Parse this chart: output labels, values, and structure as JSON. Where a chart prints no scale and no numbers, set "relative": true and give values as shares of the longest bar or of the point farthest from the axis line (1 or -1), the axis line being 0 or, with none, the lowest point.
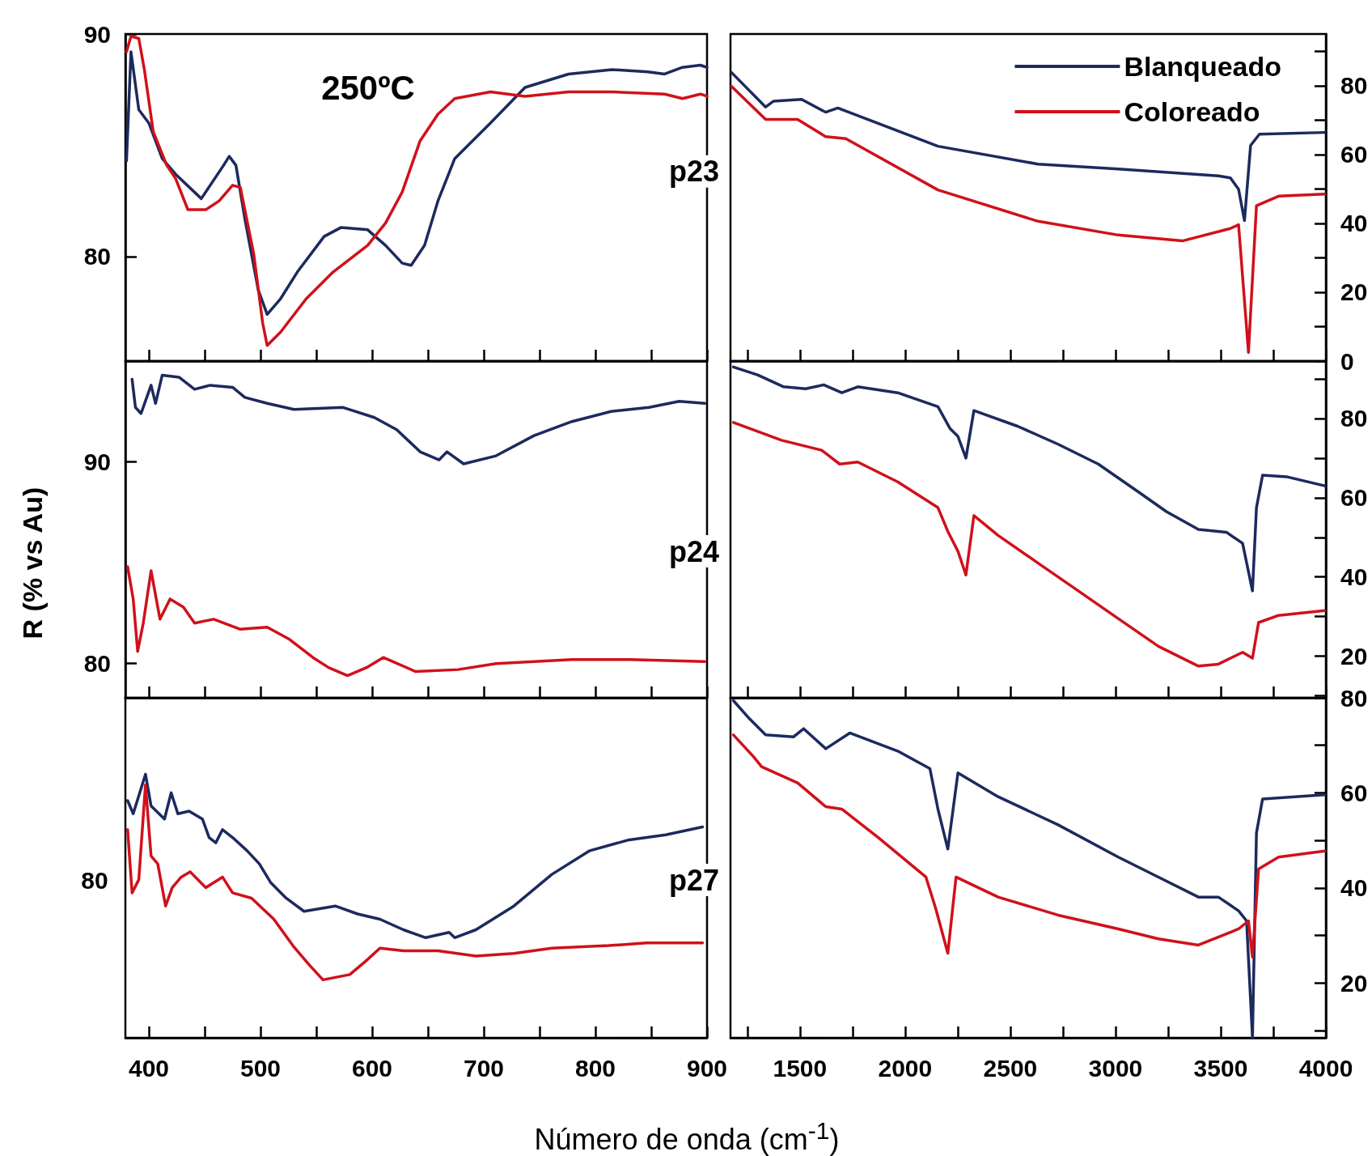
{
  "chart_data": [
    {
      "type": "line",
      "title": "250ºC",
      "annotations": [
        "p23"
      ],
      "xlim": [
        379,
        900
      ],
      "xticks": [
        400,
        {
          "value": 450,
          "label": null
        },
        500,
        {
          "value": 550,
          "label": null
        },
        600,
        {
          "value": 650,
          "label": null
        },
        700,
        {
          "value": 750,
          "label": null
        },
        800,
        {
          "value": 850,
          "label": null
        },
        900
      ],
      "ylim": [
        75.3,
        90
      ],
      "yticks": [
        80,
        90
      ],
      "tick_labels": "y",
      "series": [
        {
          "color": "#1c2a5e",
          "x": [
            380,
            384,
            391,
            400,
            412,
            424,
            447,
            467,
            472,
            478,
            486,
            498,
            506,
            518,
            533,
            557,
            572,
            596,
            612,
            627,
            635,
            647,
            659,
            674,
            706,
            737,
            776,
            815,
            847,
            862,
            878,
            894,
            900
          ],
          "values": [
            84.3,
            89.2,
            86.6,
            86.0,
            84.4,
            83.7,
            82.6,
            84.1,
            84.5,
            84.1,
            81.7,
            78.5,
            77.4,
            78.1,
            79.3,
            80.9,
            81.3,
            81.2,
            80.5,
            79.7,
            79.6,
            80.5,
            82.5,
            84.4,
            86.0,
            87.6,
            88.2,
            88.4,
            88.3,
            88.2,
            88.5,
            88.6,
            88.5
          ]
        },
        {
          "color": "#d0111b",
          "x": [
            380,
            384,
            391,
            396,
            404,
            416,
            424,
            435,
            451,
            463,
            475,
            482,
            494,
            502,
            506,
            518,
            541,
            565,
            596,
            612,
            627,
            643,
            659,
            674,
            706,
            737,
            776,
            815,
            862,
            878,
            894,
            900
          ],
          "values": [
            89.2,
            89.9,
            89.8,
            88.4,
            85.6,
            84.1,
            83.5,
            82.1,
            82.1,
            82.5,
            83.2,
            83.1,
            80.1,
            77.0,
            76.0,
            76.6,
            78.1,
            79.3,
            80.5,
            81.5,
            82.9,
            85.2,
            86.4,
            87.1,
            87.4,
            87.2,
            87.4,
            87.4,
            87.3,
            87.1,
            87.3,
            87.2
          ]
        }
      ]
    },
    {
      "type": "line",
      "legend": "top right",
      "xlim": [
        1170,
        4000
      ],
      "xticks": [
        {
          "value": 1250,
          "label": null
        },
        1500,
        {
          "value": 1750,
          "label": null
        },
        2000,
        {
          "value": 2250,
          "label": null
        },
        2500,
        {
          "value": 2750,
          "label": null
        },
        3000,
        {
          "value": 3250,
          "label": null
        },
        3500,
        {
          "value": 3750,
          "label": null
        },
        4000
      ],
      "ylim": [
        0,
        95
      ],
      "yticks": [
        0,
        {
          "value": 10,
          "label": null
        },
        20,
        {
          "value": 30,
          "label": null
        },
        40,
        {
          "value": 50,
          "label": null
        },
        60,
        {
          "value": 70,
          "label": null
        },
        80,
        {
          "value": 90,
          "label": null
        }
      ],
      "tick_labels": "y",
      "series": [
        {
          "name": "Blanqueado",
          "color": "#1c2a5e",
          "x": [
            1175,
            1337,
            1375,
            1508,
            1622,
            1680,
            2156,
            2632,
            3013,
            3489,
            3546,
            3585,
            3613,
            3642,
            3684,
            3994
          ],
          "values": [
            83.8,
            73.8,
            75.5,
            76.0,
            72.3,
            73.5,
            62.4,
            57.2,
            55.8,
            53.8,
            53.2,
            49.9,
            40.8,
            62.6,
            65.9,
            66.4
          ]
        },
        {
          "name": "Coloreado",
          "color": "#d0111b",
          "x": [
            1175,
            1337,
            1489,
            1622,
            1718,
            2156,
            2632,
            3013,
            3318,
            3546,
            3585,
            3632,
            3670,
            3775,
            3994
          ],
          "values": [
            79.8,
            70.2,
            70.2,
            65.2,
            64.6,
            49.7,
            40.6,
            36.6,
            34.9,
            38.5,
            39.6,
            2.5,
            45.1,
            47.9,
            48.5
          ]
        }
      ]
    },
    {
      "type": "line",
      "ylabel": "R (% vs Au)",
      "annotations": [
        "p24"
      ],
      "xlim": [
        379,
        900
      ],
      "xticks": [
        400,
        {
          "value": 450,
          "label": null
        },
        500,
        {
          "value": 550,
          "label": null
        },
        600,
        {
          "value": 650,
          "label": null
        },
        700,
        {
          "value": 750,
          "label": null
        },
        800,
        {
          "value": 850,
          "label": null
        },
        900
      ],
      "ylim": [
        78.3,
        95
      ],
      "yticks": [
        80,
        90
      ],
      "tick_labels": "y",
      "series": [
        {
          "color": "#1c2a5e",
          "x": [
            385,
            388,
            393,
            402,
            406,
            412,
            427,
            441,
            455,
            475,
            486,
            506,
            530,
            574,
            602,
            622,
            643,
            660,
            667,
            682,
            711,
            745,
            779,
            814,
            848,
            875,
            898
          ],
          "values": [
            94.1,
            92.7,
            92.4,
            93.8,
            92.9,
            94.3,
            94.2,
            93.6,
            93.8,
            93.7,
            93.2,
            92.9,
            92.6,
            92.7,
            92.2,
            91.6,
            90.5,
            90.1,
            90.5,
            89.9,
            90.3,
            91.3,
            92.0,
            92.5,
            92.7,
            93.0,
            92.9
          ]
        },
        {
          "color": "#d0111b",
          "x": [
            381,
            386,
            390,
            395,
            402,
            410,
            419,
            431,
            441,
            458,
            482,
            506,
            526,
            547,
            561,
            578,
            595,
            610,
            639,
            677,
            711,
            779,
            831,
            898
          ],
          "values": [
            84.8,
            83.2,
            80.6,
            82.0,
            84.6,
            82.2,
            83.2,
            82.8,
            82.0,
            82.2,
            81.7,
            81.8,
            81.2,
            80.3,
            79.8,
            79.4,
            79.8,
            80.3,
            79.6,
            79.7,
            80.0,
            80.2,
            80.2,
            80.1
          ]
        }
      ]
    },
    {
      "type": "line",
      "xlim": [
        1170,
        4000
      ],
      "xticks": [
        {
          "value": 1250,
          "label": null
        },
        1500,
        {
          "value": 1750,
          "label": null
        },
        2000,
        {
          "value": 2250,
          "label": null
        },
        2500,
        {
          "value": 2750,
          "label": null
        },
        3000,
        {
          "value": 3250,
          "label": null
        },
        3500,
        {
          "value": 3750,
          "label": null
        },
        4000
      ],
      "ylim": [
        9.5,
        94.5
      ],
      "yticks": [
        {
          "value": 10,
          "label": null
        },
        20,
        {
          "value": 30,
          "label": null
        },
        40,
        {
          "value": 50,
          "label": null
        },
        60,
        {
          "value": 70,
          "label": null
        },
        80,
        {
          "value": 90,
          "label": null
        }
      ],
      "tick_labels": "y",
      "series": [
        {
          "color": "#1c2a5e",
          "x": [
            1184,
            1299,
            1423,
            1527,
            1613,
            1699,
            1775,
            1965,
            2156,
            2213,
            2251,
            2289,
            2327,
            2537,
            2727,
            2918,
            3108,
            3242,
            3394,
            3527,
            3604,
            3651,
            3670,
            3699,
            3813,
            3994
          ],
          "values": [
            93.0,
            91.0,
            88.0,
            87.5,
            88.5,
            86.5,
            88.0,
            86.5,
            83.0,
            77.5,
            75.5,
            70.0,
            82.0,
            78.0,
            73.5,
            68.5,
            61.5,
            56.5,
            52.0,
            51.3,
            48.5,
            36.5,
            57.5,
            65.7,
            65.3,
            63.0
          ]
        },
        {
          "color": "#d0111b",
          "x": [
            1184,
            1413,
            1603,
            1689,
            1775,
            1965,
            2156,
            2203,
            2251,
            2289,
            2327,
            2442,
            2632,
            2823,
            3013,
            3204,
            3394,
            3489,
            3604,
            3651,
            3680,
            3775,
            3994
          ],
          "values": [
            79.0,
            74.5,
            72.0,
            68.5,
            69.0,
            64.0,
            57.5,
            51.5,
            46.5,
            40.5,
            55.5,
            50.5,
            43.5,
            36.5,
            29.5,
            22.5,
            17.5,
            18.0,
            21.0,
            19.5,
            28.5,
            30.3,
            31.5
          ]
        }
      ]
    },
    {
      "type": "line",
      "relative": true,
      "xlabel": "Número de onda (cm$^{-1}$)",
      "annotations": [
        "p27",
        "80"
      ],
      "xlim": [
        379,
        900
      ],
      "xticks": [
        400,
        {
          "value": 450,
          "label": null
        },
        500,
        {
          "value": 550,
          "label": null
        },
        600,
        {
          "value": 650,
          "label": null
        },
        700,
        {
          "value": 750,
          "label": null
        },
        800,
        {
          "value": 850,
          "label": null
        },
        900
      ],
      "series": [
        {
          "color": "#1c2a5e",
          "x": [
            381,
            386,
            397,
            402,
            414,
            420,
            426,
            436,
            448,
            454,
            460,
            466,
            475,
            488,
            499,
            509,
            523,
            539,
            567,
            587,
            607,
            628,
            648,
            669,
            674,
            693,
            727,
            761,
            795,
            829,
            863,
            896
          ],
          "values": [
            0.9,
            0.85,
            1,
            0.88,
            0.83,
            0.93,
            0.85,
            0.86,
            0.83,
            0.76,
            0.74,
            0.79,
            0.76,
            0.71,
            0.66,
            0.59,
            0.53,
            0.48,
            0.5,
            0.47,
            0.45,
            0.41,
            0.38,
            0.4,
            0.38,
            0.41,
            0.5,
            0.62,
            0.71,
            0.75,
            0.77,
            0.8
          ]
        },
        {
          "color": "#d0111b",
          "x": [
            381,
            385,
            391,
            397,
            402,
            408,
            415,
            421,
            429,
            437,
            451,
            466,
            475,
            492,
            512,
            529,
            543,
            556,
            580,
            594,
            607,
            628,
            659,
            693,
            727,
            761,
            812,
            846,
            896
          ],
          "values": [
            0.79,
            0.55,
            0.6,
            0.96,
            0.69,
            0.66,
            0.5,
            0.57,
            0.61,
            0.63,
            0.57,
            0.61,
            0.55,
            0.53,
            0.45,
            0.35,
            0.28,
            0.22,
            0.24,
            0.29,
            0.34,
            0.33,
            0.33,
            0.31,
            0.32,
            0.34,
            0.35,
            0.36,
            0.36
          ]
        }
      ]
    },
    {
      "type": "line",
      "xlim": [
        1170,
        4000
      ],
      "xticks": [
        {
          "value": 1250,
          "label": null
        },
        1500,
        {
          "value": 1750,
          "label": null
        },
        2000,
        {
          "value": 2250,
          "label": null
        },
        2500,
        {
          "value": 2750,
          "label": null
        },
        3000,
        {
          "value": 3250,
          "label": null
        },
        3500,
        {
          "value": 3750,
          "label": null
        },
        4000
      ],
      "ylim": [
        8.5,
        80
      ],
      "yticks": [
        {
          "value": 10,
          "label": null
        },
        20,
        {
          "value": 30,
          "label": null
        },
        40,
        {
          "value": 50,
          "label": null
        },
        60,
        {
          "value": 70,
          "label": null
        },
        80
      ],
      "series": [
        {
          "color": "#1c2a5e",
          "x": [
            1184,
            1260,
            1337,
            1470,
            1518,
            1623,
            1737,
            1965,
            2118,
            2156,
            2203,
            2251,
            2442,
            2727,
            3013,
            3204,
            3394,
            3489,
            3585,
            3623,
            3651,
            3670,
            3699,
            3994
          ],
          "values": [
            79.4,
            75.6,
            72.2,
            71.8,
            73.5,
            69.3,
            72.6,
            68.8,
            65.1,
            56.6,
            48.2,
            64.2,
            59.2,
            53.3,
            46.5,
            42.3,
            38.1,
            38.1,
            35.2,
            33.1,
            8.5,
            51.6,
            58.7,
            59.6
          ]
        },
        {
          "color": "#d0111b",
          "x": [
            1184,
            1280,
            1318,
            1489,
            1623,
            1699,
            1870,
            2099,
            2146,
            2203,
            2242,
            2442,
            2727,
            3013,
            3204,
            3394,
            3585,
            3632,
            3651,
            3680,
            3775,
            3994
          ],
          "values": [
            72.2,
            67.6,
            65.5,
            62.1,
            57.1,
            56.6,
            50.7,
            42.3,
            35.6,
            26.3,
            42.3,
            38.1,
            34.3,
            31.4,
            29.3,
            28.0,
            31.4,
            33.1,
            25.5,
            44.0,
            46.5,
            47.8
          ]
        }
      ]
    }
  ]
}
